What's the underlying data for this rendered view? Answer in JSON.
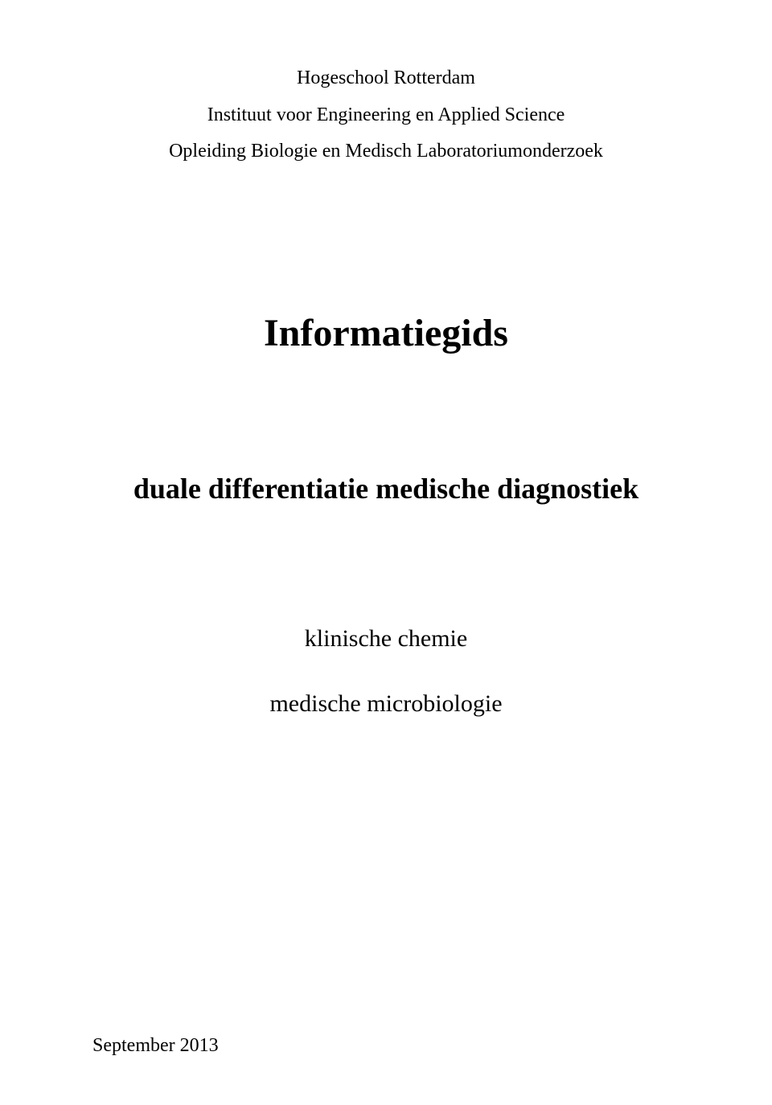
{
  "header": {
    "line1": "Hogeschool Rotterdam",
    "line2": "Instituut voor Engineering en Applied Science",
    "line3": "Opleiding Biologie en Medisch Laboratoriumonderzoek"
  },
  "title": "Informatiegids",
  "subtitle": "duale differentiatie medische diagnostiek",
  "topics": {
    "topic1": "klinische chemie",
    "topic2": "medische microbiologie"
  },
  "footer": "September 2013",
  "style": {
    "background_color": "#ffffff",
    "text_color": "#000000",
    "font_family": "Times New Roman",
    "header_fontsize": 24,
    "title_fontsize": 48,
    "subtitle_fontsize": 36,
    "topics_fontsize": 30,
    "footer_fontsize": 24
  }
}
